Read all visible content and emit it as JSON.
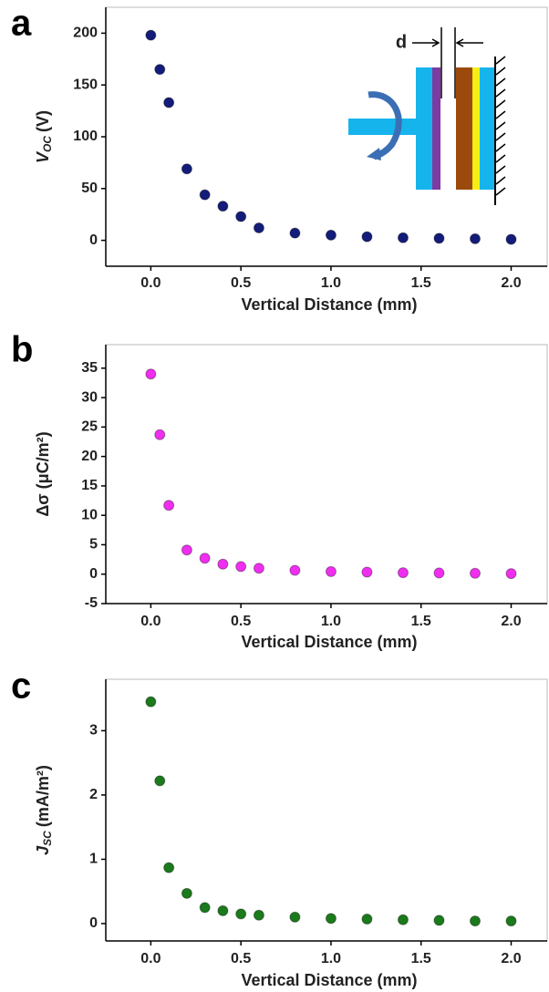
{
  "chart_data": [
    {
      "type": "scatter",
      "panel": "a",
      "xlabel": "Vertical Distance (mm)",
      "ylabel": {
        "symbol": "V",
        "subscript": "OC",
        "unit": "(V)"
      },
      "annotation": "d",
      "xlim": [
        -0.25,
        2.2
      ],
      "ylim": [
        -25,
        225
      ],
      "xticks": [
        {
          "value": 0,
          "label": "0.0"
        },
        {
          "value": 0.5,
          "label": "0.5"
        },
        {
          "value": 1,
          "label": "1.0"
        },
        {
          "value": 1.5,
          "label": "1.5"
        },
        {
          "value": 2,
          "label": "2.0"
        }
      ],
      "yticks": [
        0,
        50,
        100,
        150,
        200
      ],
      "x": [
        0,
        0.05,
        0.1,
        0.2,
        0.3,
        0.4,
        0.5,
        0.6,
        0.8,
        1.0,
        1.2,
        1.4,
        1.6,
        1.8,
        2.0
      ],
      "values": [
        198,
        165,
        133,
        69,
        44,
        33,
        23,
        12,
        7,
        5,
        3.5,
        2.5,
        2,
        1.5,
        1
      ],
      "color": "#141c7a"
    },
    {
      "type": "scatter",
      "panel": "b",
      "xlabel": "Vertical Distance (mm)",
      "ylabel": "Δσ (μC/m²)",
      "xlim": [
        -0.25,
        2.2
      ],
      "ylim": [
        -5,
        39
      ],
      "xticks": [
        {
          "value": 0,
          "label": "0.0"
        },
        {
          "value": 0.5,
          "label": "0.5"
        },
        {
          "value": 1,
          "label": "1.0"
        },
        {
          "value": 1.5,
          "label": "1.5"
        },
        {
          "value": 2,
          "label": "2.0"
        }
      ],
      "yticks": [
        -5,
        0,
        5,
        10,
        15,
        20,
        25,
        30,
        35
      ],
      "x": [
        0,
        0.05,
        0.1,
        0.2,
        0.3,
        0.4,
        0.5,
        0.6,
        0.8,
        1.0,
        1.2,
        1.4,
        1.6,
        1.8,
        2.0
      ],
      "values": [
        34,
        23.7,
        11.7,
        4.1,
        2.7,
        1.7,
        1.3,
        1.0,
        0.65,
        0.45,
        0.35,
        0.25,
        0.2,
        0.15,
        0.1
      ],
      "color": "#f02ef0"
    },
    {
      "type": "scatter",
      "panel": "c",
      "xlabel": "Vertical Distance (mm)",
      "ylabel": {
        "symbol": "J",
        "subscript": "SC",
        "unit": "(mA/m²)"
      },
      "xlim": [
        -0.25,
        2.2
      ],
      "ylim": [
        -0.27,
        3.8
      ],
      "xticks": [
        {
          "value": 0,
          "label": "0.0"
        },
        {
          "value": 0.5,
          "label": "0.5"
        },
        {
          "value": 1,
          "label": "1.0"
        },
        {
          "value": 1.5,
          "label": "1.5"
        },
        {
          "value": 2,
          "label": "2.0"
        }
      ],
      "yticks": [
        0,
        1,
        2,
        3
      ],
      "x": [
        0,
        0.05,
        0.1,
        0.2,
        0.3,
        0.4,
        0.5,
        0.6,
        0.8,
        1.0,
        1.2,
        1.4,
        1.6,
        1.8,
        2.0
      ],
      "values": [
        3.45,
        2.22,
        0.87,
        0.47,
        0.25,
        0.2,
        0.15,
        0.13,
        0.1,
        0.08,
        0.07,
        0.06,
        0.05,
        0.04,
        0.04
      ],
      "color": "#1b7a1b"
    }
  ]
}
